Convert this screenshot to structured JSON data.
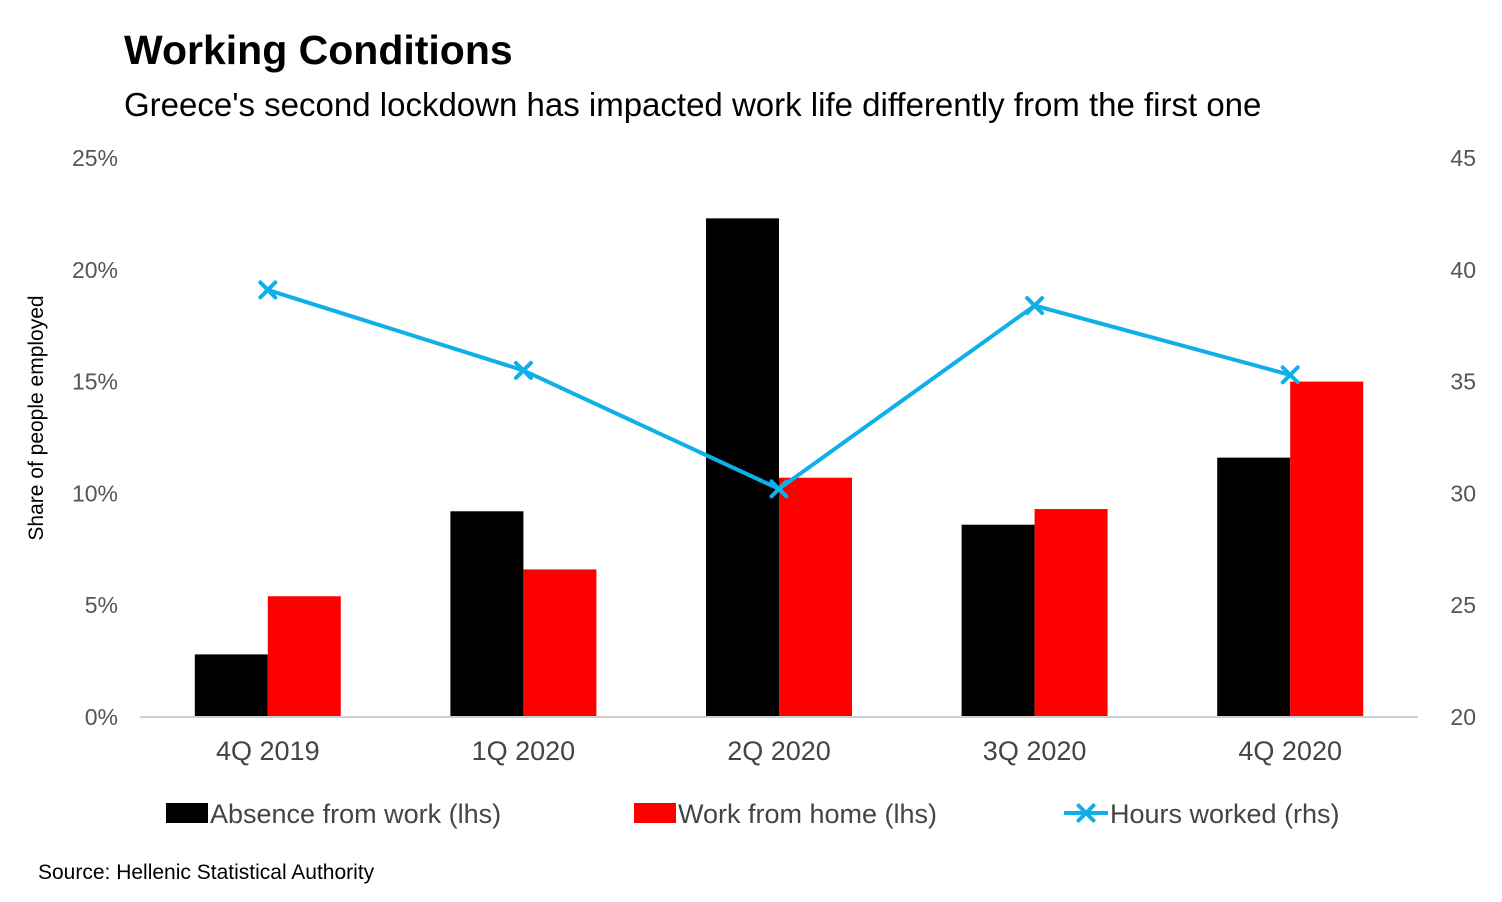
{
  "title": "Working Conditions",
  "subtitle": "Greece's second lockdown has impacted work life differently from the first one",
  "source": "Source: Hellenic Statistical Authority",
  "chart_data": {
    "type": "bar",
    "categories": [
      "4Q 2019",
      "1Q 2020",
      "2Q 2020",
      "3Q 2020",
      "4Q 2020"
    ],
    "series": [
      {
        "name": "Absence from work (lhs)",
        "type": "bar",
        "axis": "left",
        "color": "#000000",
        "values": [
          2.8,
          9.2,
          22.3,
          8.6,
          11.6
        ]
      },
      {
        "name": "Work from home (lhs)",
        "type": "bar",
        "axis": "left",
        "color": "#ff0000",
        "values": [
          5.4,
          6.6,
          10.7,
          9.3,
          15.0
        ]
      },
      {
        "name": "Hours worked (rhs)",
        "type": "line",
        "marker": "x",
        "axis": "right",
        "color": "#0fb0e8",
        "values": [
          39.1,
          35.5,
          30.2,
          38.4,
          35.3
        ]
      }
    ],
    "ylabel": "Share of people employed",
    "ylim": [
      0,
      25
    ],
    "y_ticks": [
      "0%",
      "5%",
      "10%",
      "15%",
      "20%",
      "25%"
    ],
    "y2lim": [
      20,
      45
    ],
    "y2_ticks": [
      "20",
      "25",
      "30",
      "35",
      "40",
      "45"
    ],
    "grid": false,
    "legend_position": "bottom"
  }
}
